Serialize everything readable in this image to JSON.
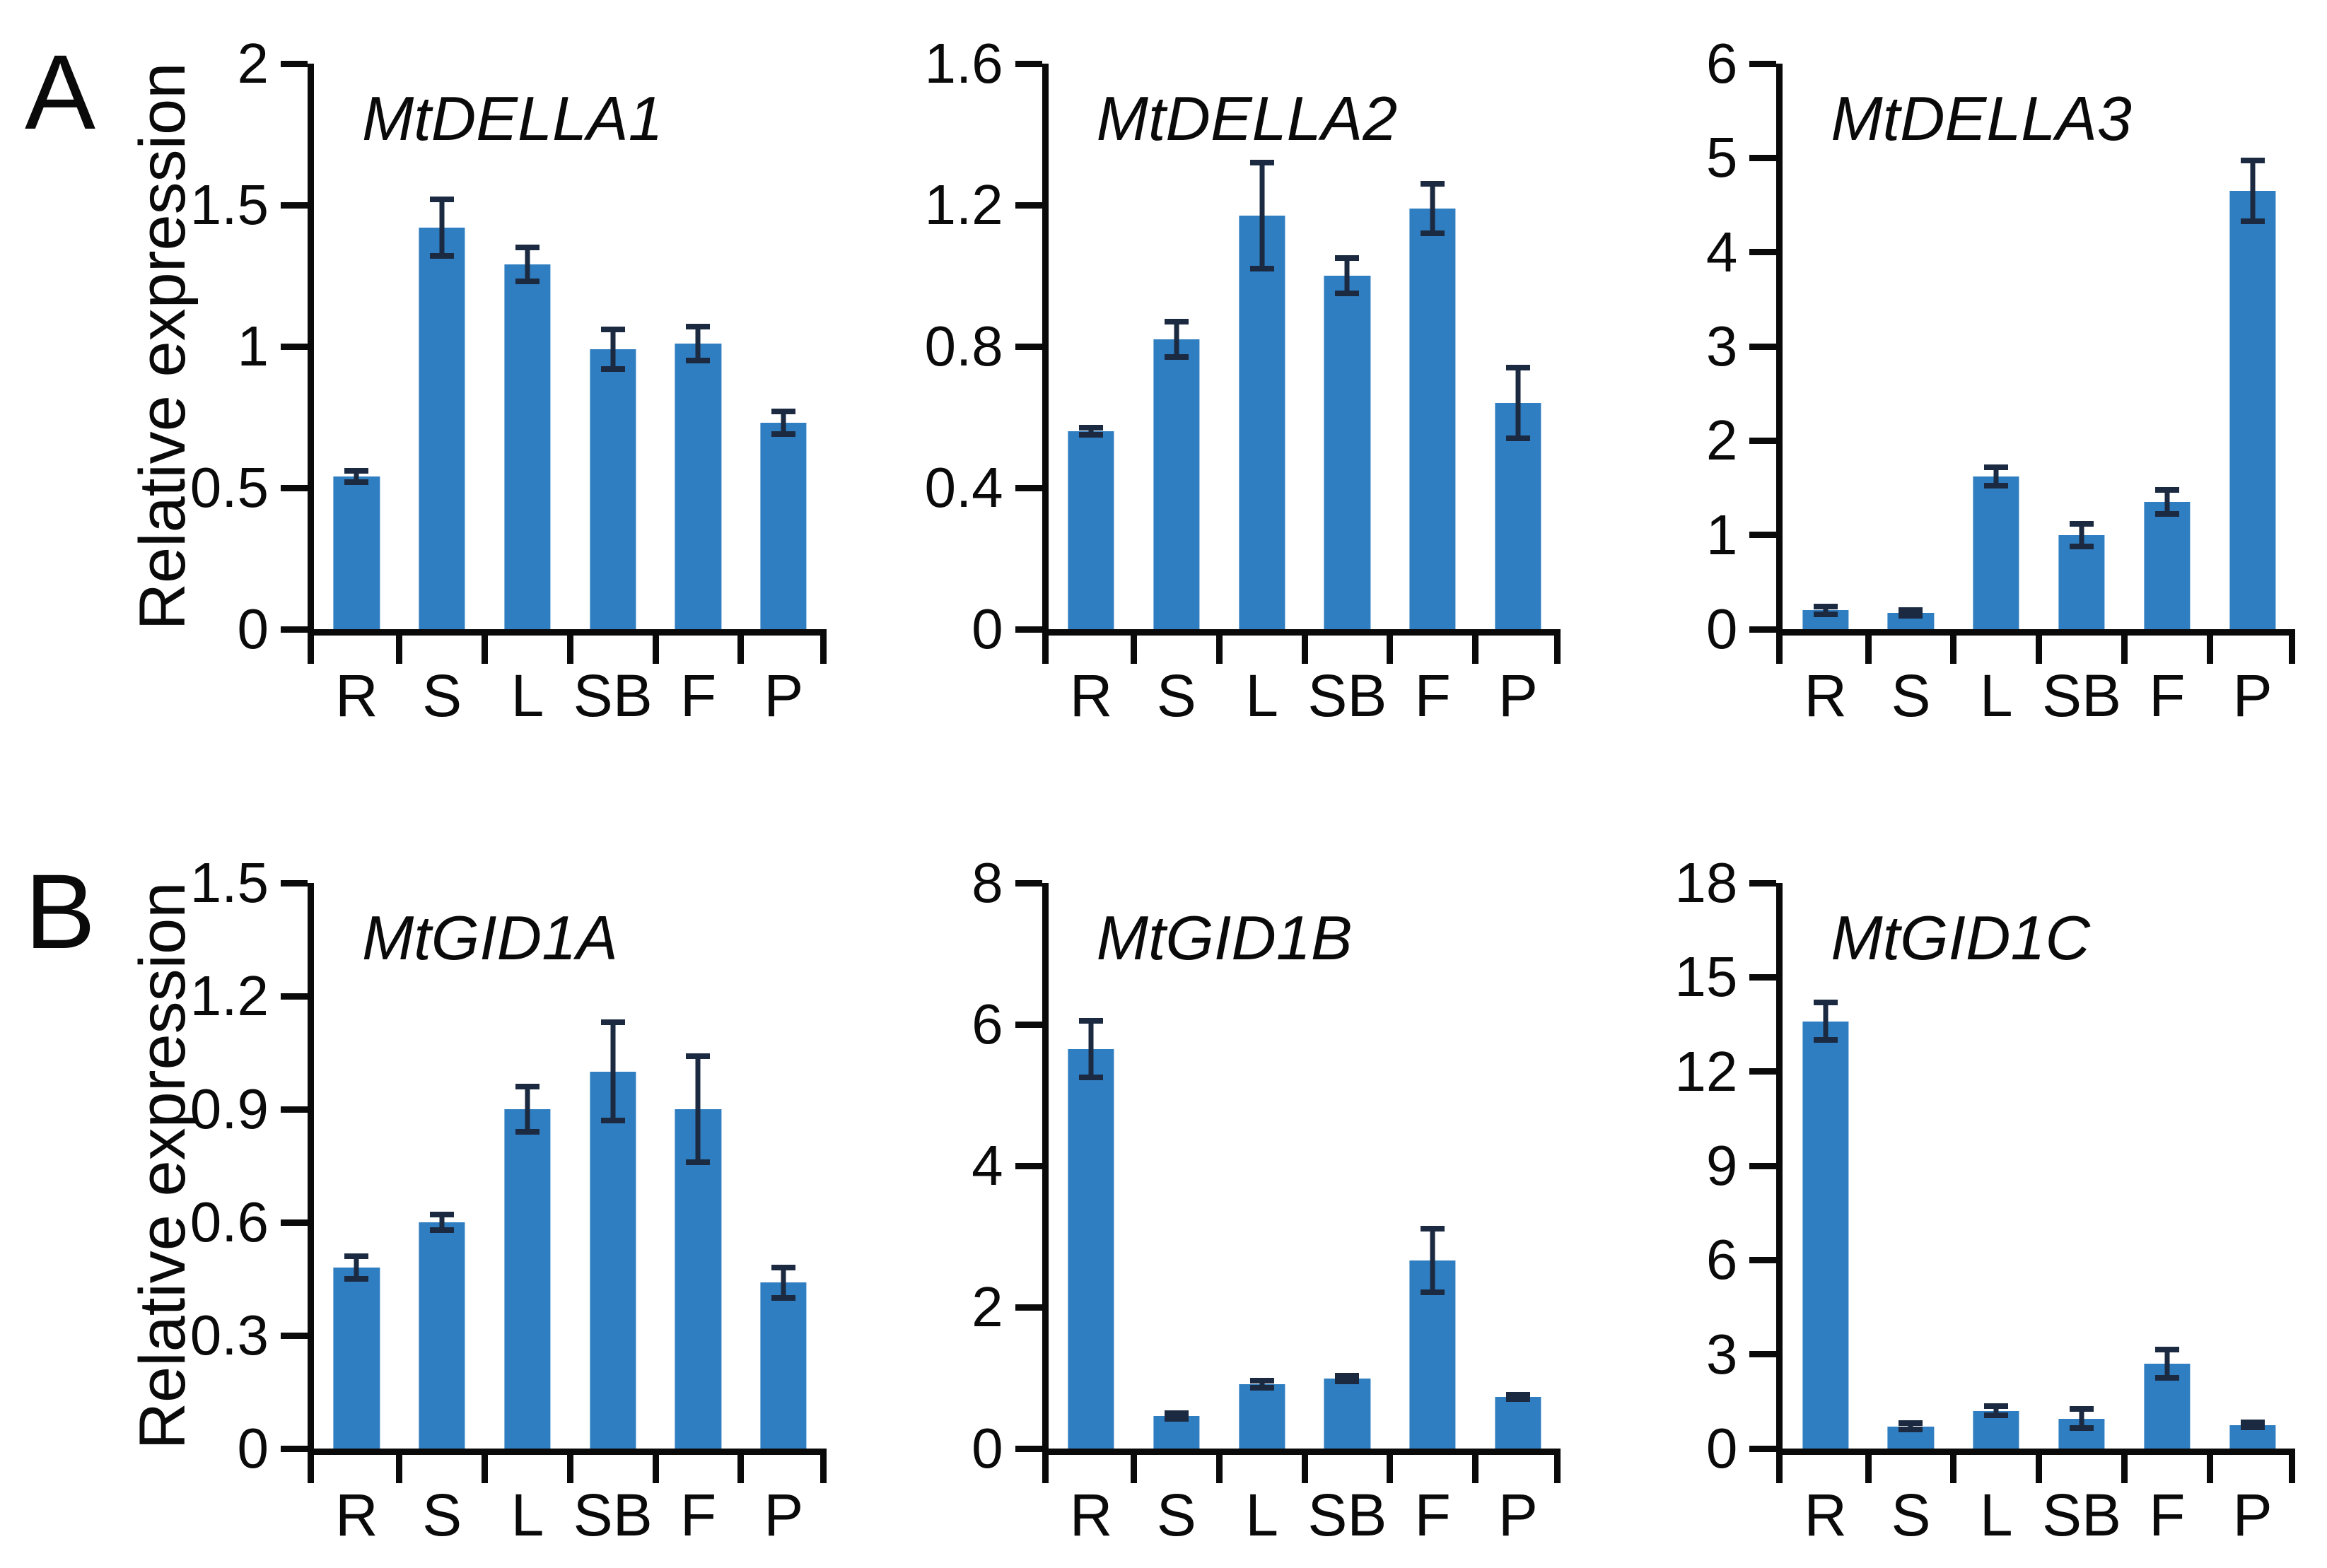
{
  "figure": {
    "panels": [
      {
        "label": "A",
        "y_axis_title": "Relative expression"
      },
      {
        "label": "B",
        "y_axis_title": "Relative expression"
      }
    ]
  },
  "colors": {
    "bar": "#2f7ec1",
    "error_bar": "#1b2a41",
    "axis": "#0a0a0a",
    "text": "#0a0a0a",
    "background": "#ffffff"
  },
  "chart_data": [
    {
      "type": "bar",
      "panel": "A",
      "title": "MtDELLA1",
      "xlabel": "",
      "ylabel": "Relative expression",
      "categories": [
        "R",
        "S",
        "L",
        "SB",
        "F",
        "P"
      ],
      "values": [
        0.54,
        1.42,
        1.29,
        0.99,
        1.01,
        0.73
      ],
      "errors": [
        0.02,
        0.1,
        0.06,
        0.07,
        0.06,
        0.04
      ],
      "ylim": [
        0,
        2
      ],
      "yticks": [
        0,
        0.5,
        1,
        1.5,
        2
      ],
      "ytick_labels": [
        "0",
        "0.5",
        "1",
        "1.5",
        "2"
      ],
      "grid": false,
      "legend": "none"
    },
    {
      "type": "bar",
      "panel": "A",
      "title": "MtDELLA2",
      "xlabel": "",
      "ylabel": "",
      "categories": [
        "R",
        "S",
        "L",
        "SB",
        "F",
        "P"
      ],
      "values": [
        0.56,
        0.82,
        1.17,
        1.0,
        1.19,
        0.64
      ],
      "errors": [
        0.01,
        0.05,
        0.15,
        0.05,
        0.07,
        0.1
      ],
      "ylim": [
        0,
        1.6
      ],
      "yticks": [
        0,
        0.4,
        0.8,
        1.2,
        1.6
      ],
      "ytick_labels": [
        "0",
        "0.4",
        "0.8",
        "1.2",
        "1.6"
      ],
      "grid": false,
      "legend": "none"
    },
    {
      "type": "bar",
      "panel": "A",
      "title": "MtDELLA3",
      "xlabel": "",
      "ylabel": "",
      "categories": [
        "R",
        "S",
        "L",
        "SB",
        "F",
        "P"
      ],
      "values": [
        0.2,
        0.17,
        1.62,
        1.0,
        1.35,
        4.65
      ],
      "errors": [
        0.04,
        0.03,
        0.1,
        0.12,
        0.13,
        0.32
      ],
      "ylim": [
        0,
        6
      ],
      "yticks": [
        0,
        1,
        2,
        3,
        4,
        5,
        6
      ],
      "ytick_labels": [
        "0",
        "1",
        "2",
        "3",
        "4",
        "5",
        "6"
      ],
      "grid": false,
      "legend": "none"
    },
    {
      "type": "bar",
      "panel": "B",
      "title": "MtGID1A",
      "xlabel": "",
      "ylabel": "Relative expression",
      "categories": [
        "R",
        "S",
        "L",
        "SB",
        "F",
        "P"
      ],
      "values": [
        0.48,
        0.6,
        0.9,
        1.0,
        0.9,
        0.44
      ],
      "errors": [
        0.03,
        0.02,
        0.06,
        0.13,
        0.14,
        0.04
      ],
      "ylim": [
        0,
        1.5
      ],
      "yticks": [
        0,
        0.3,
        0.6,
        0.9,
        1.2,
        1.5
      ],
      "ytick_labels": [
        "0",
        "0.3",
        "0.6",
        "0.9",
        "1.2",
        "1.5"
      ],
      "grid": false,
      "legend": "none"
    },
    {
      "type": "bar",
      "panel": "B",
      "title": "MtGID1B",
      "xlabel": "",
      "ylabel": "",
      "categories": [
        "R",
        "S",
        "L",
        "SB",
        "F",
        "P"
      ],
      "values": [
        5.65,
        0.46,
        0.91,
        0.99,
        2.66,
        0.73
      ],
      "errors": [
        0.4,
        0.04,
        0.05,
        0.04,
        0.45,
        0.03
      ],
      "ylim": [
        0,
        8
      ],
      "yticks": [
        0,
        2,
        4,
        6,
        8
      ],
      "ytick_labels": [
        "0",
        "2",
        "4",
        "6",
        "8"
      ],
      "grid": false,
      "legend": "none"
    },
    {
      "type": "bar",
      "panel": "B",
      "title": "MtGID1C",
      "xlabel": "",
      "ylabel": "",
      "categories": [
        "R",
        "S",
        "L",
        "SB",
        "F",
        "P"
      ],
      "values": [
        13.6,
        0.7,
        1.2,
        0.95,
        2.7,
        0.75
      ],
      "errors": [
        0.6,
        0.1,
        0.15,
        0.3,
        0.45,
        0.08
      ],
      "ylim": [
        0,
        18
      ],
      "yticks": [
        0,
        3,
        6,
        9,
        12,
        15,
        18
      ],
      "ytick_labels": [
        "0",
        "3",
        "6",
        "9",
        "12",
        "15",
        "18"
      ],
      "grid": false,
      "legend": "none"
    }
  ]
}
